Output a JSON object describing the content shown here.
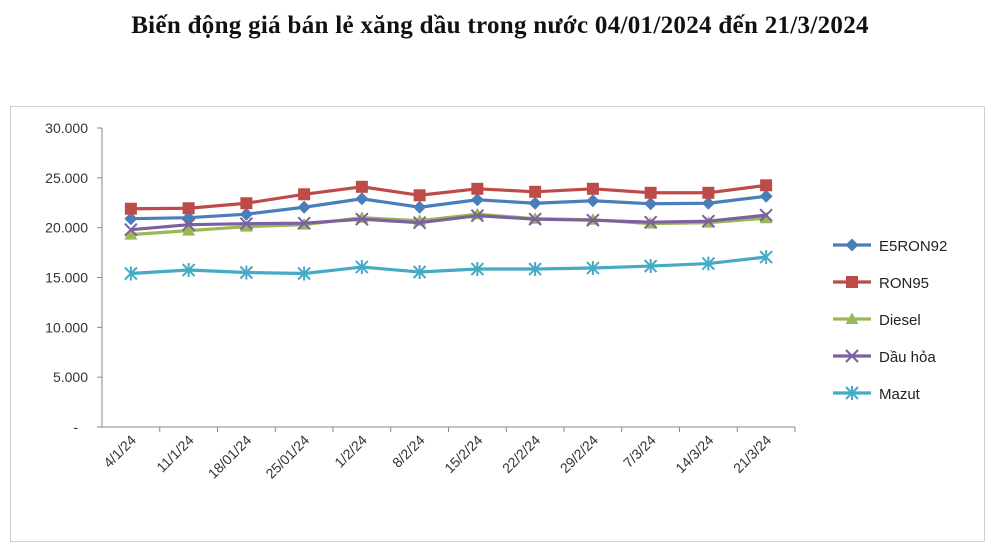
{
  "title": "Biến động giá bán lẻ xăng dầu trong nước 04/01/2024 đến 21/3/2024",
  "chart_data": {
    "type": "line",
    "title": "Biến động giá bán lẻ xăng dầu trong nước 04/01/2024 đến 21/3/2024",
    "categories": [
      "4/1/24",
      "11/1/24",
      "18/01/24",
      "25/01/24",
      "1/2/24",
      "8/2/24",
      "15/2/24",
      "22/2/24",
      "29/2/24",
      "7/3/24",
      "14/3/24",
      "21/3/24"
    ],
    "ylim": [
      0,
      30000
    ],
    "yticks": [
      "-",
      "5.000",
      "10.000",
      "15.000",
      "20.000",
      "25.000",
      "30.000"
    ],
    "grid": false,
    "legend_position": "right",
    "series": [
      {
        "name": "E5RON92",
        "color": "#4a7ebb",
        "marker": "diamond",
        "values": [
          20900,
          21000,
          21350,
          22050,
          22900,
          22050,
          22800,
          22450,
          22700,
          22400,
          22450,
          23150
        ]
      },
      {
        "name": "RON95",
        "color": "#be4b48",
        "marker": "square",
        "values": [
          21900,
          21950,
          22450,
          23350,
          24100,
          23250,
          23900,
          23600,
          23900,
          23500,
          23500,
          24250
        ]
      },
      {
        "name": "Diesel",
        "color": "#98b954",
        "marker": "triangle",
        "values": [
          19300,
          19700,
          20100,
          20300,
          21000,
          20700,
          21350,
          20900,
          20800,
          20400,
          20500,
          20950
        ]
      },
      {
        "name": "Dầu hỏa",
        "color": "#7d60a0",
        "marker": "x",
        "values": [
          19800,
          20300,
          20400,
          20450,
          20850,
          20500,
          21200,
          20850,
          20750,
          20550,
          20650,
          21250
        ]
      },
      {
        "name": "Mazut",
        "color": "#46aac5",
        "marker": "star",
        "values": [
          15400,
          15750,
          15500,
          15400,
          16050,
          15550,
          15850,
          15850,
          15950,
          16150,
          16400,
          17050
        ]
      }
    ]
  }
}
